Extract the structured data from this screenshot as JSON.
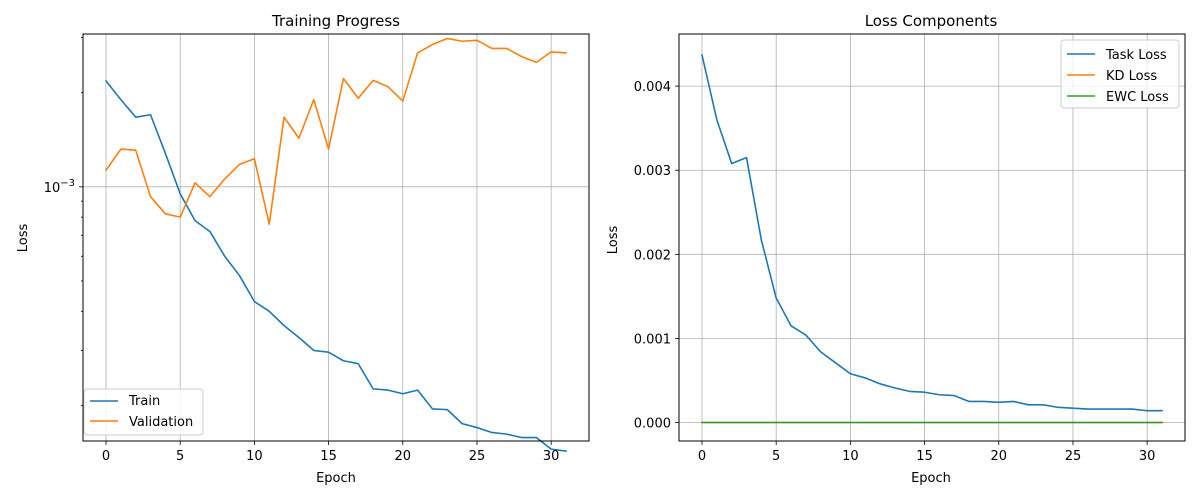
{
  "chart_data": [
    {
      "type": "line",
      "title": "Training Progress",
      "xlabel": "Epoch",
      "ylabel": "Loss",
      "yscale": "log",
      "xlim": [
        -1.55,
        32.55
      ],
      "ylim": [
        0.000154,
        0.00308
      ],
      "grid": true,
      "legend_position": "lower-left",
      "x_ticks": [
        0,
        5,
        10,
        15,
        20,
        25,
        30
      ],
      "x_tick_labels": [
        "0",
        "5",
        "10",
        "15",
        "20",
        "25",
        "30"
      ],
      "y_ticks": [
        0.001
      ],
      "y_tick_base": "10",
      "y_tick_exponent": "−3",
      "x": [
        0,
        1,
        2,
        3,
        4,
        5,
        6,
        7,
        8,
        9,
        10,
        11,
        12,
        13,
        14,
        15,
        16,
        17,
        18,
        19,
        20,
        21,
        22,
        23,
        24,
        25,
        26,
        27,
        28,
        29,
        30,
        31
      ],
      "series": [
        {
          "name": "Train",
          "color": "#1f77b4",
          "values": [
            0.00218,
            0.0019,
            0.00167,
            0.0017,
            0.00128,
            0.00095,
            0.00078,
            0.00072,
            0.0006,
            0.00052,
            0.00043,
            0.0004,
            0.00036,
            0.00033,
            0.0003,
            0.000296,
            0.000278,
            0.000272,
            0.000226,
            0.000224,
            0.000218,
            0.000224,
            0.000195,
            0.000194,
            0.000175,
            0.00017,
            0.000164,
            0.000162,
            0.000158,
            0.000158,
            0.000145,
            0.000143
          ]
        },
        {
          "name": "Validation",
          "color": "#ff7f0e",
          "values": [
            0.00113,
            0.00132,
            0.00131,
            0.00093,
            0.00082,
            0.0008,
            0.00103,
            0.00093,
            0.00106,
            0.00118,
            0.00123,
            0.00076,
            0.00167,
            0.00143,
            0.0019,
            0.00132,
            0.00222,
            0.00192,
            0.00219,
            0.00209,
            0.00188,
            0.00268,
            0.00285,
            0.00298,
            0.00292,
            0.00294,
            0.00277,
            0.00277,
            0.00261,
            0.0025,
            0.0027,
            0.00268
          ]
        }
      ]
    },
    {
      "type": "line",
      "title": "Loss Components",
      "xlabel": "Epoch",
      "ylabel": "Loss",
      "xlim": [
        -1.55,
        32.55
      ],
      "ylim": [
        -0.00022,
        0.00462
      ],
      "grid": true,
      "legend_position": "upper-right",
      "x_ticks": [
        0,
        5,
        10,
        15,
        20,
        25,
        30
      ],
      "x_tick_labels": [
        "0",
        "5",
        "10",
        "15",
        "20",
        "25",
        "30"
      ],
      "y_ticks": [
        0,
        0.001,
        0.002,
        0.003,
        0.004
      ],
      "y_tick_labels": [
        "0.000",
        "0.001",
        "0.002",
        "0.003",
        "0.004"
      ],
      "x": [
        0,
        1,
        2,
        3,
        4,
        5,
        6,
        7,
        8,
        9,
        10,
        11,
        12,
        13,
        14,
        15,
        16,
        17,
        18,
        19,
        20,
        21,
        22,
        23,
        24,
        25,
        26,
        27,
        28,
        29,
        30,
        31
      ],
      "series": [
        {
          "name": "Task Loss",
          "color": "#1f77b4",
          "values": [
            0.00437,
            0.0036,
            0.00308,
            0.00315,
            0.00217,
            0.00148,
            0.00115,
            0.00104,
            0.00084,
            0.00071,
            0.00058,
            0.00053,
            0.00046,
            0.00041,
            0.00037,
            0.00036,
            0.00033,
            0.00032,
            0.00025,
            0.00025,
            0.00024,
            0.00025,
            0.00021,
            0.00021,
            0.00018,
            0.00017,
            0.00016,
            0.00016,
            0.00016,
            0.00016,
            0.00014,
            0.00014
          ]
        },
        {
          "name": "KD Loss",
          "color": "#ff7f0e",
          "values": [
            0,
            0,
            0,
            0,
            0,
            0,
            0,
            0,
            0,
            0,
            0,
            0,
            0,
            0,
            0,
            0,
            0,
            0,
            0,
            0,
            0,
            0,
            0,
            0,
            0,
            0,
            0,
            0,
            0,
            0,
            0,
            0
          ]
        },
        {
          "name": "EWC Loss",
          "color": "#2ca02c",
          "values": [
            0,
            0,
            0,
            0,
            0,
            0,
            0,
            0,
            0,
            0,
            0,
            0,
            0,
            0,
            0,
            0,
            0,
            0,
            0,
            0,
            0,
            0,
            0,
            0,
            0,
            0,
            0,
            0,
            0,
            0,
            0,
            0
          ]
        }
      ]
    }
  ]
}
